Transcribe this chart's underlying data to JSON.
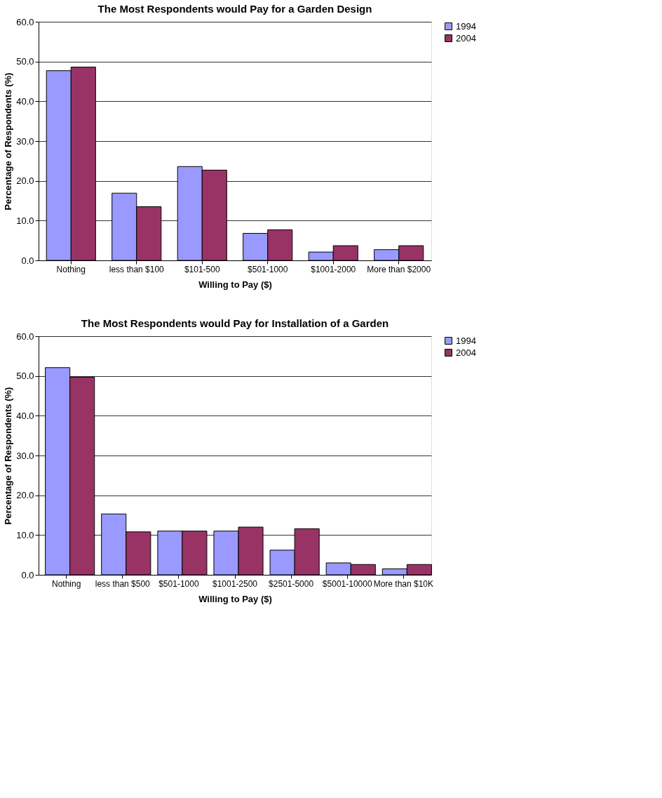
{
  "chart_data": [
    {
      "type": "bar",
      "title": "The Most Respondents would Pay for a Garden Design",
      "xlabel": "Willing to Pay ($)",
      "ylabel": "Percentage of Respondents (%)",
      "categories": [
        "Nothing",
        "less than $100",
        "$101-500",
        "$501-1000",
        "$1001-2000",
        "More than $2000"
      ],
      "series": [
        {
          "name": "1994",
          "color": "#9999ff",
          "values": [
            47.7,
            16.9,
            23.6,
            6.8,
            2.1,
            2.7
          ]
        },
        {
          "name": "2004",
          "color": "#993366",
          "values": [
            48.6,
            13.5,
            22.7,
            7.7,
            3.7,
            3.7
          ]
        }
      ],
      "ylim": [
        0,
        60
      ],
      "yticks": [
        {
          "value": 0,
          "label": "0.0"
        },
        {
          "value": 10,
          "label": "10.0"
        },
        {
          "value": 20,
          "label": "20.0"
        },
        {
          "value": 30,
          "label": "30.0"
        },
        {
          "value": 40,
          "label": "40.0"
        },
        {
          "value": 50,
          "label": "50.0"
        },
        {
          "value": 60,
          "label": "60.0"
        }
      ],
      "grid": "y",
      "legend": "right"
    },
    {
      "type": "bar",
      "title": "The Most Respondents would Pay for Installation of a Garden",
      "xlabel": "Willing to Pay ($)",
      "ylabel": "Percentage of Respondents (%)",
      "categories": [
        "Nothing",
        "less than $500",
        "$501-1000",
        "$1001-2500",
        "$2501-5000",
        "$5001-10000",
        "More than $10K"
      ],
      "series": [
        {
          "name": "1994",
          "color": "#9999ff",
          "values": [
            52.1,
            15.3,
            11.0,
            11.0,
            6.2,
            3.0,
            1.5
          ]
        },
        {
          "name": "2004",
          "color": "#993366",
          "values": [
            49.7,
            10.8,
            11.0,
            12.0,
            11.6,
            2.6,
            2.6
          ]
        }
      ],
      "ylim": [
        0,
        60
      ],
      "yticks": [
        {
          "value": 0,
          "label": "0.0"
        },
        {
          "value": 10,
          "label": "10.0"
        },
        {
          "value": 20,
          "label": "20.0"
        },
        {
          "value": 30,
          "label": "30.0"
        },
        {
          "value": 40,
          "label": "40.0"
        },
        {
          "value": 50,
          "label": "50.0"
        },
        {
          "value": 60,
          "label": "60.0"
        }
      ],
      "grid": "y",
      "legend": "right"
    }
  ]
}
